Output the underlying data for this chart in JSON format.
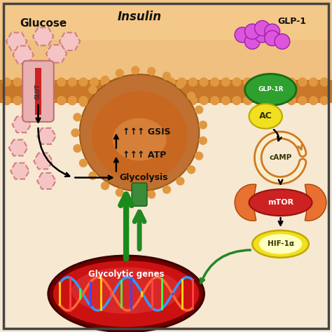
{
  "bg_color": "#f5e8d8",
  "ext_color": "#f0c890",
  "mem_color": "#c87828",
  "mem_bead_color": "#d4904a",
  "cell_color": "#f5e8d8",
  "glucose_label": "Glucose",
  "insulin_label": "Insulin",
  "glp1_label": "GLP-1",
  "glp1r_label": "GLP-1R",
  "ac_label": "AC",
  "camp_label": "cAMP",
  "mtor_label": "mTOR",
  "hif_label": "HIF-1α",
  "glycolysis_label": "→ Glycolysis",
  "atp_label": "↑↑↑ ATP",
  "gsis_label": "↑↑↑ GSIS",
  "glycolytic_label": "Glycolytic genes",
  "glut_label": "GLUT"
}
